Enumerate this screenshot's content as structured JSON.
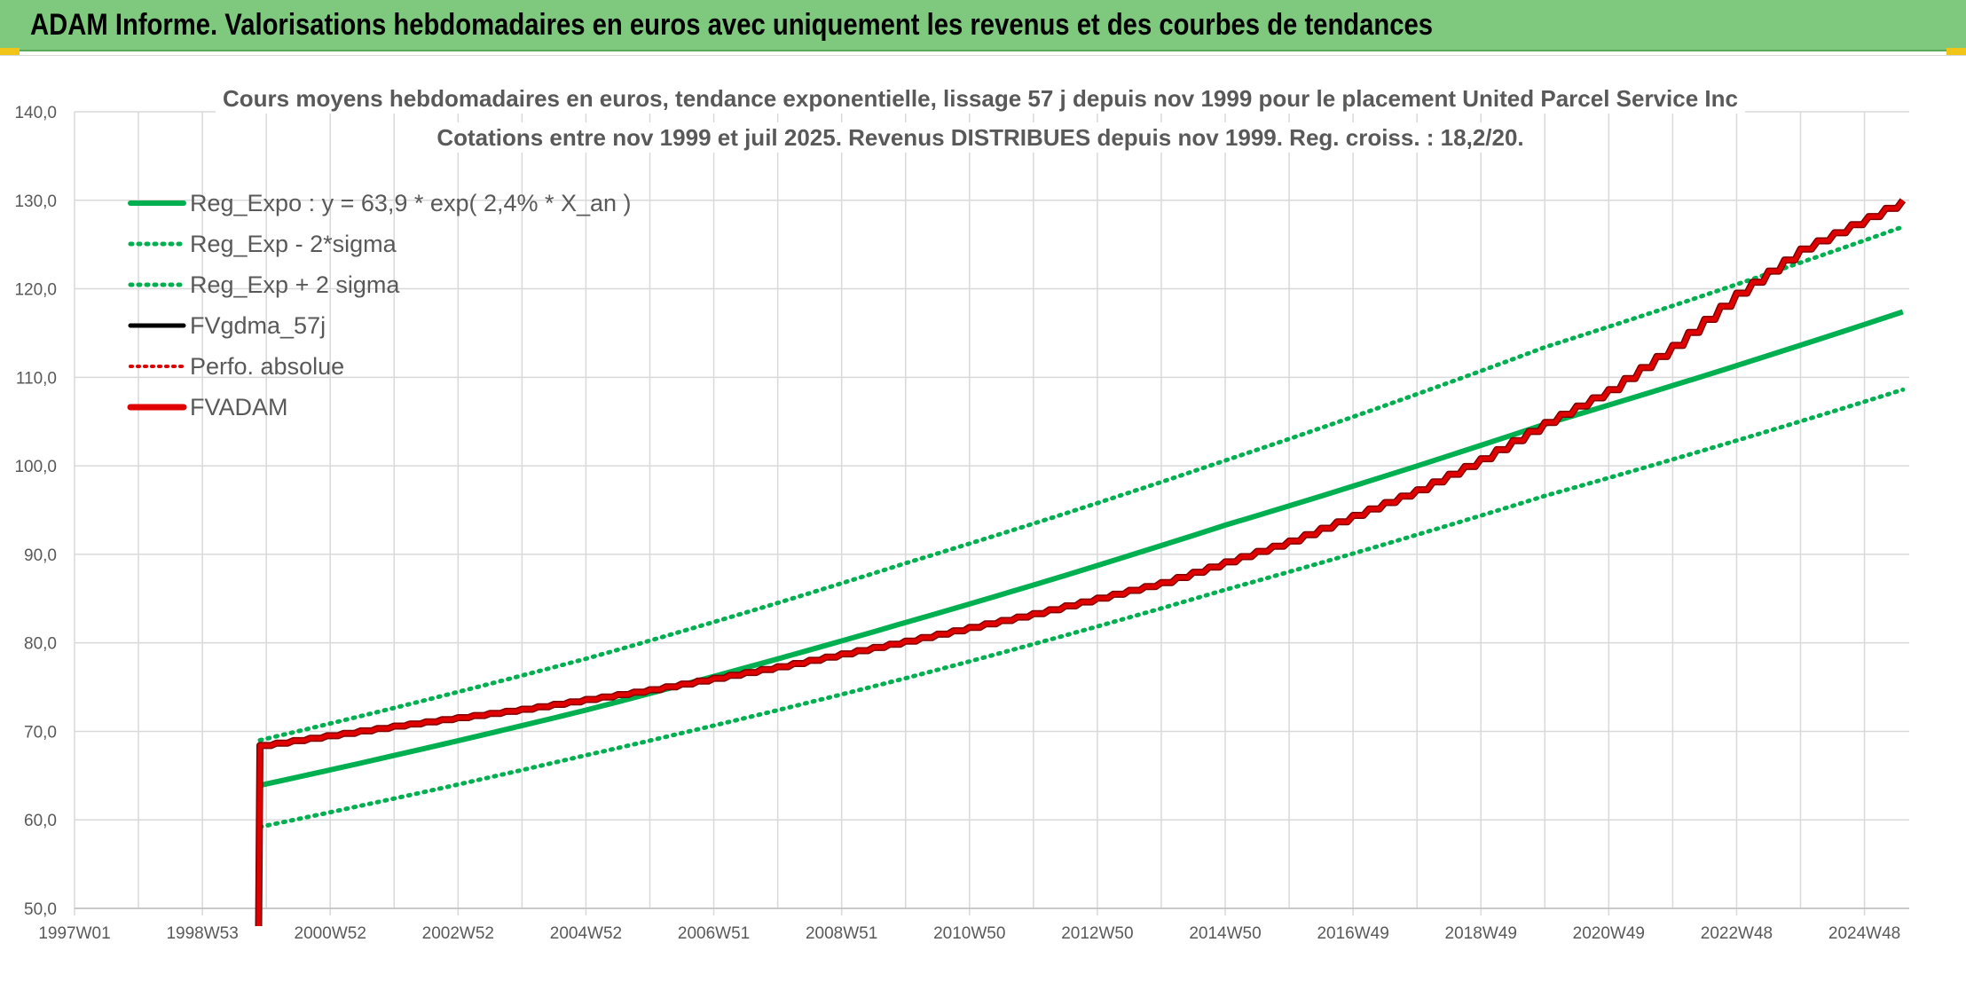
{
  "banner": {
    "title": "ADAM Informe. Valorisations hebdomadaires en euros avec uniquement les revenus et des courbes de tendances"
  },
  "colors": {
    "banner_bg": "#7fc97f",
    "trend_green": "#00b050",
    "fvadam_red": "#e00000",
    "fvadam_outline": "#800000",
    "gridline": "#d9d9d9",
    "text_grey": "#595959"
  },
  "chart_data": {
    "type": "line",
    "title": [
      "Cours moyens hebdomadaires en euros, tendance exponentielle, lissage 57 j depuis nov 1999 pour le placement United Parcel Service Inc",
      "Cotations entre nov 1999 et juil 2025. Revenus DISTRIBUES depuis nov 1999. Reg. croiss. : 18,2/20."
    ],
    "x_tick_labels": [
      "1997W01",
      "1998W53",
      "2000W52",
      "2002W52",
      "2004W52",
      "2006W51",
      "2008W51",
      "2010W50",
      "2012W50",
      "2014W50",
      "2016W49",
      "2018W49",
      "2020W49",
      "2022W48",
      "2024W48"
    ],
    "x_range_years": [
      1997.0,
      2025.7
    ],
    "ylim": [
      50,
      140
    ],
    "y_ticks": [
      50,
      60,
      70,
      80,
      90,
      100,
      110,
      120,
      130,
      140
    ],
    "y_tick_labels": [
      "50,0",
      "60,0",
      "70,0",
      "80,0",
      "90,0",
      "100,0",
      "110,0",
      "120,0",
      "130,0",
      "140,0"
    ],
    "grid": true,
    "legend_position": "top-left",
    "series": [
      {
        "name": "Reg_Expo : y = 63,9 * exp( 2,4% *  X_an )",
        "style": "solid-green",
        "x": [
          1999.9,
          2005.0,
          2010.0,
          2015.0,
          2020.0,
          2025.6
        ],
        "y": [
          63.9,
          72.4,
          82.3,
          93.3,
          104.7,
          117.4
        ]
      },
      {
        "name": "Reg_Exp - 2*sigma",
        "style": "dotted-green",
        "x": [
          1999.9,
          2005.0,
          2010.0,
          2015.0,
          2020.0,
          2025.6
        ],
        "y": [
          59.2,
          67.3,
          76.0,
          86.0,
          96.6,
          108.6
        ]
      },
      {
        "name": "Reg_Exp + 2 sigma",
        "style": "dotted-green",
        "x": [
          1999.9,
          2005.0,
          2010.0,
          2015.0,
          2020.0,
          2025.6
        ],
        "y": [
          69.0,
          78.2,
          89.0,
          100.6,
          113.4,
          127.0
        ]
      },
      {
        "name": "FVgdma_57j",
        "style": "solid-black",
        "x": [],
        "y": []
      },
      {
        "name": "Perfo. absolue",
        "style": "dotted-red",
        "x": [],
        "y": []
      },
      {
        "name": "FVADAM",
        "style": "stepped-red",
        "x": [
          1999.88,
          1999.9,
          2002.0,
          2004.0,
          2006.0,
          2008.0,
          2010.0,
          2012.0,
          2014.0,
          2016.0,
          2018.0,
          2019.0,
          2020.0,
          2021.0,
          2022.0,
          2023.0,
          2024.0,
          2025.6
        ],
        "y": [
          48.0,
          68.4,
          70.6,
          72.5,
          74.7,
          77.3,
          80.2,
          83.3,
          86.8,
          91.5,
          97.3,
          100.8,
          104.9,
          108.6,
          113.6,
          119.5,
          124.5,
          130.0
        ]
      }
    ]
  }
}
